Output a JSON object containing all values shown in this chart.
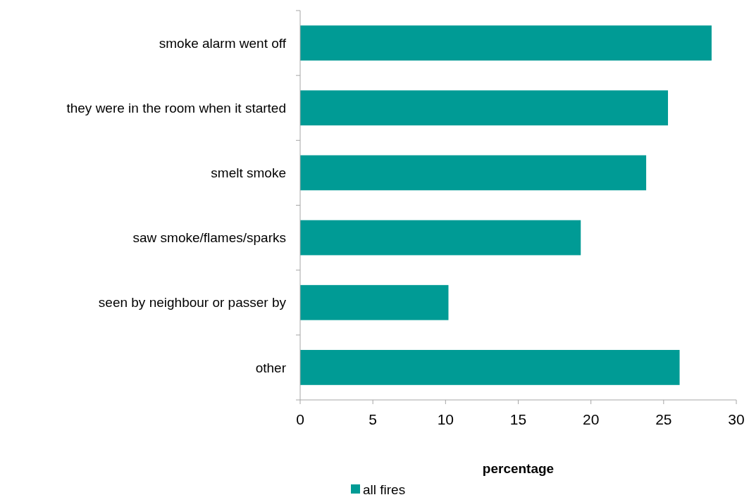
{
  "chart_data": {
    "type": "bar",
    "orientation": "horizontal",
    "categories": [
      "smoke alarm went off",
      "they were in the room when it started",
      "smelt smoke",
      "saw smoke/flames/sparks",
      "seen by neighbour or passer by",
      "other"
    ],
    "series": [
      {
        "name": "all fires",
        "color": "#009b95",
        "values": [
          28.3,
          25.3,
          23.8,
          19.3,
          10.2,
          26.1
        ]
      }
    ],
    "xlabel": "percentage",
    "xlim": [
      0,
      30
    ],
    "xticks": [
      0,
      5,
      10,
      15,
      20,
      25,
      30
    ],
    "grid": false,
    "legend": "bottom"
  }
}
